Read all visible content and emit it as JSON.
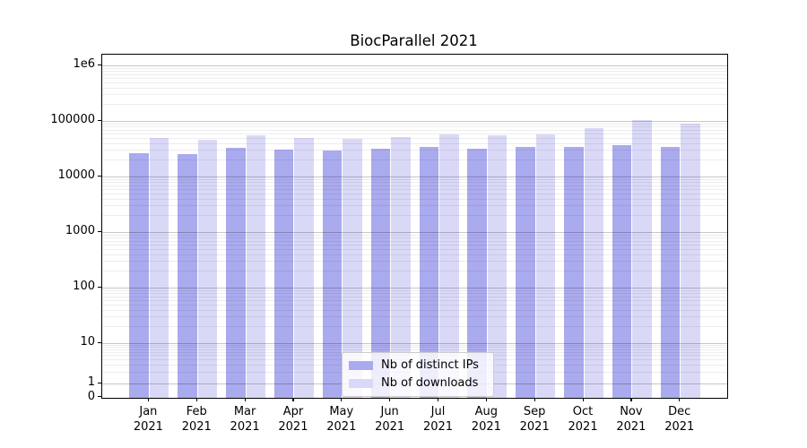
{
  "title": "BiocParallel 2021",
  "chart_data": {
    "type": "bar",
    "title": "BiocParallel 2021",
    "x_categories": [
      "Jan 2021",
      "Feb 2021",
      "Mar 2021",
      "Apr 2021",
      "May 2021",
      "Jun 2021",
      "Jul 2021",
      "Aug 2021",
      "Sep 2021",
      "Oct 2021",
      "Nov 2021",
      "Dec 2021"
    ],
    "series": [
      {
        "name": "Nb of distinct IPs",
        "color": "#aaaaee",
        "values": [
          26200,
          25600,
          32400,
          30400,
          29700,
          31600,
          33700,
          31600,
          33700,
          34500,
          37100,
          34400
        ]
      },
      {
        "name": "Nb of downloads",
        "color": "#d9d9f7",
        "values": [
          48500,
          46000,
          55300,
          48900,
          47100,
          51900,
          56800,
          55200,
          58200,
          73500,
          105000,
          88000
        ]
      }
    ],
    "yscale": "symlog",
    "ylim": [
      0,
      1560000
    ],
    "y_ticks": [
      {
        "label": "1e6",
        "value": 1000000
      },
      {
        "label": "100000",
        "value": 100000
      },
      {
        "label": "10000",
        "value": 10000
      },
      {
        "label": "1000",
        "value": 1000
      },
      {
        "label": "100",
        "value": 100
      },
      {
        "label": "10",
        "value": 10
      },
      {
        "label": "1",
        "value": 1
      },
      {
        "label": "0",
        "value": 0
      }
    ],
    "grid": true,
    "legend_position": "lower center",
    "gridline_major_color": "#c6c6c6",
    "gridline_minor_color": "#ededed",
    "axis_color": "#000000",
    "background_color": "#ffffff"
  }
}
